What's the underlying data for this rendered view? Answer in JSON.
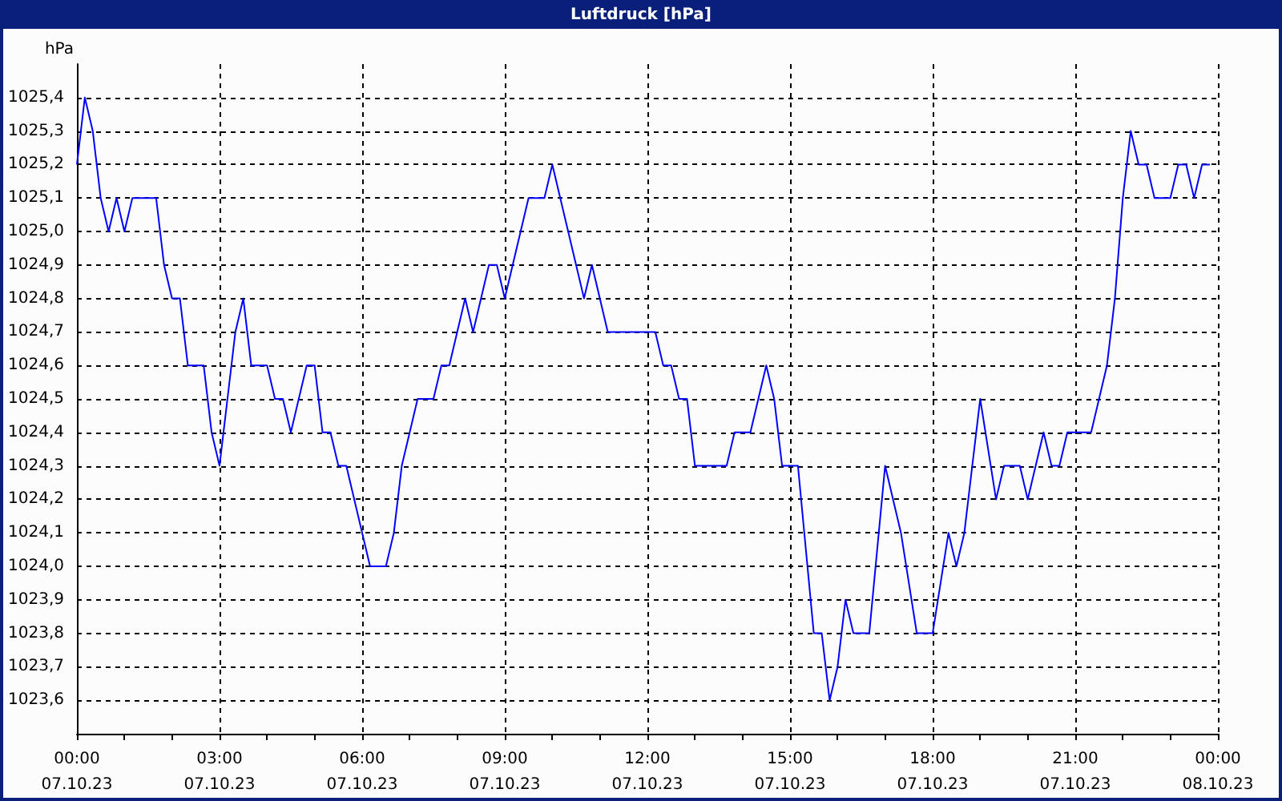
{
  "chart_data": {
    "type": "line",
    "title": "Luftdruck [hPa]",
    "ylabel": "hPa",
    "x": [
      "--10-07T00:00",
      "--10-07T00:10",
      "--10-07T00:20",
      "--10-07T00:30",
      "--10-07T00:40",
      "--10-07T00:50",
      "--10-07T01:00",
      "--10-07T01:10",
      "--10-07T01:40",
      "--10-07T01:50",
      "--10-07T02:00",
      "--10-07T02:10",
      "--10-07T02:20",
      "--10-07T02:40",
      "--10-07T02:50",
      "--10-07T03:00",
      "--10-07T03:10",
      "--10-07T03:20",
      "--10-07T03:30",
      "--10-07T03:40",
      "--10-07T04:00",
      "--10-07T04:10",
      "--10-07T04:20",
      "--10-07T04:30",
      "--10-07T04:50",
      "--10-07T05:00",
      "--10-07T05:10",
      "--10-07T05:20",
      "--10-07T05:30",
      "--10-07T05:40",
      "--10-07T06:00",
      "--10-07T06:10",
      "--10-07T06:30",
      "--10-07T06:40",
      "--10-07T06:50",
      "--10-07T07:10",
      "--10-07T07:30",
      "--10-07T07:40",
      "--10-07T07:50",
      "--10-07T08:10",
      "--10-07T08:20",
      "--10-07T08:40",
      "--10-07T08:50",
      "--10-07T09:00",
      "--10-07T09:30",
      "--10-07T09:50",
      "--10-07T10:00",
      "--10-07T10:40",
      "--10-07T10:50",
      "--10-07T11:10",
      "--10-07T12:10",
      "--10-07T12:20",
      "--10-07T12:30",
      "--10-07T12:40",
      "--10-07T12:50",
      "--10-07T13:00",
      "--10-07T13:40",
      "--10-07T13:50",
      "--10-07T14:10",
      "--10-07T14:30",
      "--10-07T14:40",
      "--10-07T14:50",
      "--10-07T15:10",
      "--10-07T15:30",
      "--10-07T15:40",
      "--10-07T15:50",
      "--10-07T16:00",
      "--10-07T16:10",
      "--10-07T16:20",
      "--10-07T16:40",
      "--10-07T17:00",
      "--10-07T17:20",
      "--10-07T17:40",
      "--10-07T18:00",
      "--10-07T18:20",
      "--10-07T18:30",
      "--10-07T18:40",
      "--10-07T19:00",
      "--10-07T19:20",
      "--10-07T19:30",
      "--10-07T19:50",
      "--10-07T20:00",
      "--10-07T20:20",
      "--10-07T20:30",
      "--10-07T20:40",
      "--10-07T20:50",
      "--10-07T21:20",
      "--10-07T21:40",
      "--10-07T21:50",
      "--10-07T22:00",
      "--10-07T22:10",
      "--10-07T22:20",
      "--10-07T22:30",
      "--10-07T22:40",
      "--10-07T23:00",
      "--10-07T23:10",
      "--10-07T23:20",
      "--10-07T23:30",
      "--10-07T23:40",
      "--10-07T23:50"
    ],
    "series": [
      {
        "color": "#0000ff",
        "values": [
          1025.2,
          1025.4,
          1025.3,
          1025.1,
          1025.0,
          1025.1,
          1025.0,
          1025.1,
          1025.1,
          1024.9,
          1024.8,
          1024.8,
          1024.6,
          1024.6,
          1024.4,
          1024.3,
          1024.5,
          1024.7,
          1024.8,
          1024.6,
          1024.6,
          1024.5,
          1024.5,
          1024.4,
          1024.6,
          1024.6,
          1024.4,
          1024.4,
          1024.3,
          1024.3,
          1024.1,
          1024.0,
          1024.0,
          1024.1,
          1024.3,
          1024.5,
          1024.5,
          1024.6,
          1024.6,
          1024.8,
          1024.7,
          1024.9,
          1024.9,
          1024.8,
          1025.1,
          1025.1,
          1025.2,
          1024.8,
          1024.9,
          1024.7,
          1024.7,
          1024.6,
          1024.6,
          1024.5,
          1024.5,
          1024.3,
          1024.3,
          1024.4,
          1024.4,
          1024.6,
          1024.5,
          1024.3,
          1024.3,
          1023.8,
          1023.8,
          1023.6,
          1023.7,
          1023.9,
          1023.8,
          1023.8,
          1024.3,
          1024.1,
          1023.8,
          1023.8,
          1024.1,
          1024.0,
          1024.1,
          1024.5,
          1024.2,
          1024.3,
          1024.3,
          1024.2,
          1024.4,
          1024.3,
          1024.3,
          1024.4,
          1024.4,
          1024.6,
          1024.8,
          1025.1,
          1025.3,
          1025.2,
          1025.2,
          1025.1,
          1025.1,
          1025.2,
          1025.2,
          1025.1,
          1025.2,
          1025.2
        ]
      }
    ],
    "xlim": [
      "--10-07T00:00",
      "--10-08T00:00"
    ],
    "xticks": [
      {
        "value": "--10-07T00:00",
        "label": "00:00\n07.10.23"
      },
      {
        "value": "--10-07T03:00",
        "label": "03:00\n07.10.23"
      },
      {
        "value": "--10-07T06:00",
        "label": "06:00\n07.10.23"
      },
      {
        "value": "--10-07T09:00",
        "label": "09:00\n07.10.23"
      },
      {
        "value": "--10-07T12:00",
        "label": "12:00\n07.10.23"
      },
      {
        "value": "--10-07T15:00",
        "label": "15:00\n07.10.23"
      },
      {
        "value": "--10-07T18:00",
        "label": "18:00\n07.10.23"
      },
      {
        "value": "--10-07T21:00",
        "label": "21:00\n07.10.23"
      },
      {
        "value": "--10-08T00:00",
        "label": "00:00\n08.10.23"
      }
    ],
    "ylim": [
      1023.5,
      1025.5
    ],
    "yticks": [
      {
        "value": 1023.6,
        "label": "1023,6"
      },
      {
        "value": 1023.7,
        "label": "1023,7"
      },
      {
        "value": 1023.8,
        "label": "1023,8"
      },
      {
        "value": 1023.9,
        "label": "1023,9"
      },
      {
        "value": 1024.0,
        "label": "1024,0"
      },
      {
        "value": 1024.1,
        "label": "1024,1"
      },
      {
        "value": 1024.2,
        "label": "1024,2"
      },
      {
        "value": 1024.3,
        "label": "1024,3"
      },
      {
        "value": 1024.4,
        "label": "1024,4"
      },
      {
        "value": 1024.5,
        "label": "1024,5"
      },
      {
        "value": 1024.6,
        "label": "1024,6"
      },
      {
        "value": 1024.7,
        "label": "1024,7"
      },
      {
        "value": 1024.8,
        "label": "1024,8"
      },
      {
        "value": 1024.9,
        "label": "1024,9"
      },
      {
        "value": 1025.0,
        "label": "1025,0"
      },
      {
        "value": 1025.1,
        "label": "1025,1"
      },
      {
        "value": 1025.2,
        "label": "1025,2"
      },
      {
        "value": 1025.3,
        "label": "1025,3"
      },
      {
        "value": 1025.4,
        "label": "1025,4"
      }
    ],
    "grid": true,
    "marker": "none",
    "line_style": "solid"
  }
}
